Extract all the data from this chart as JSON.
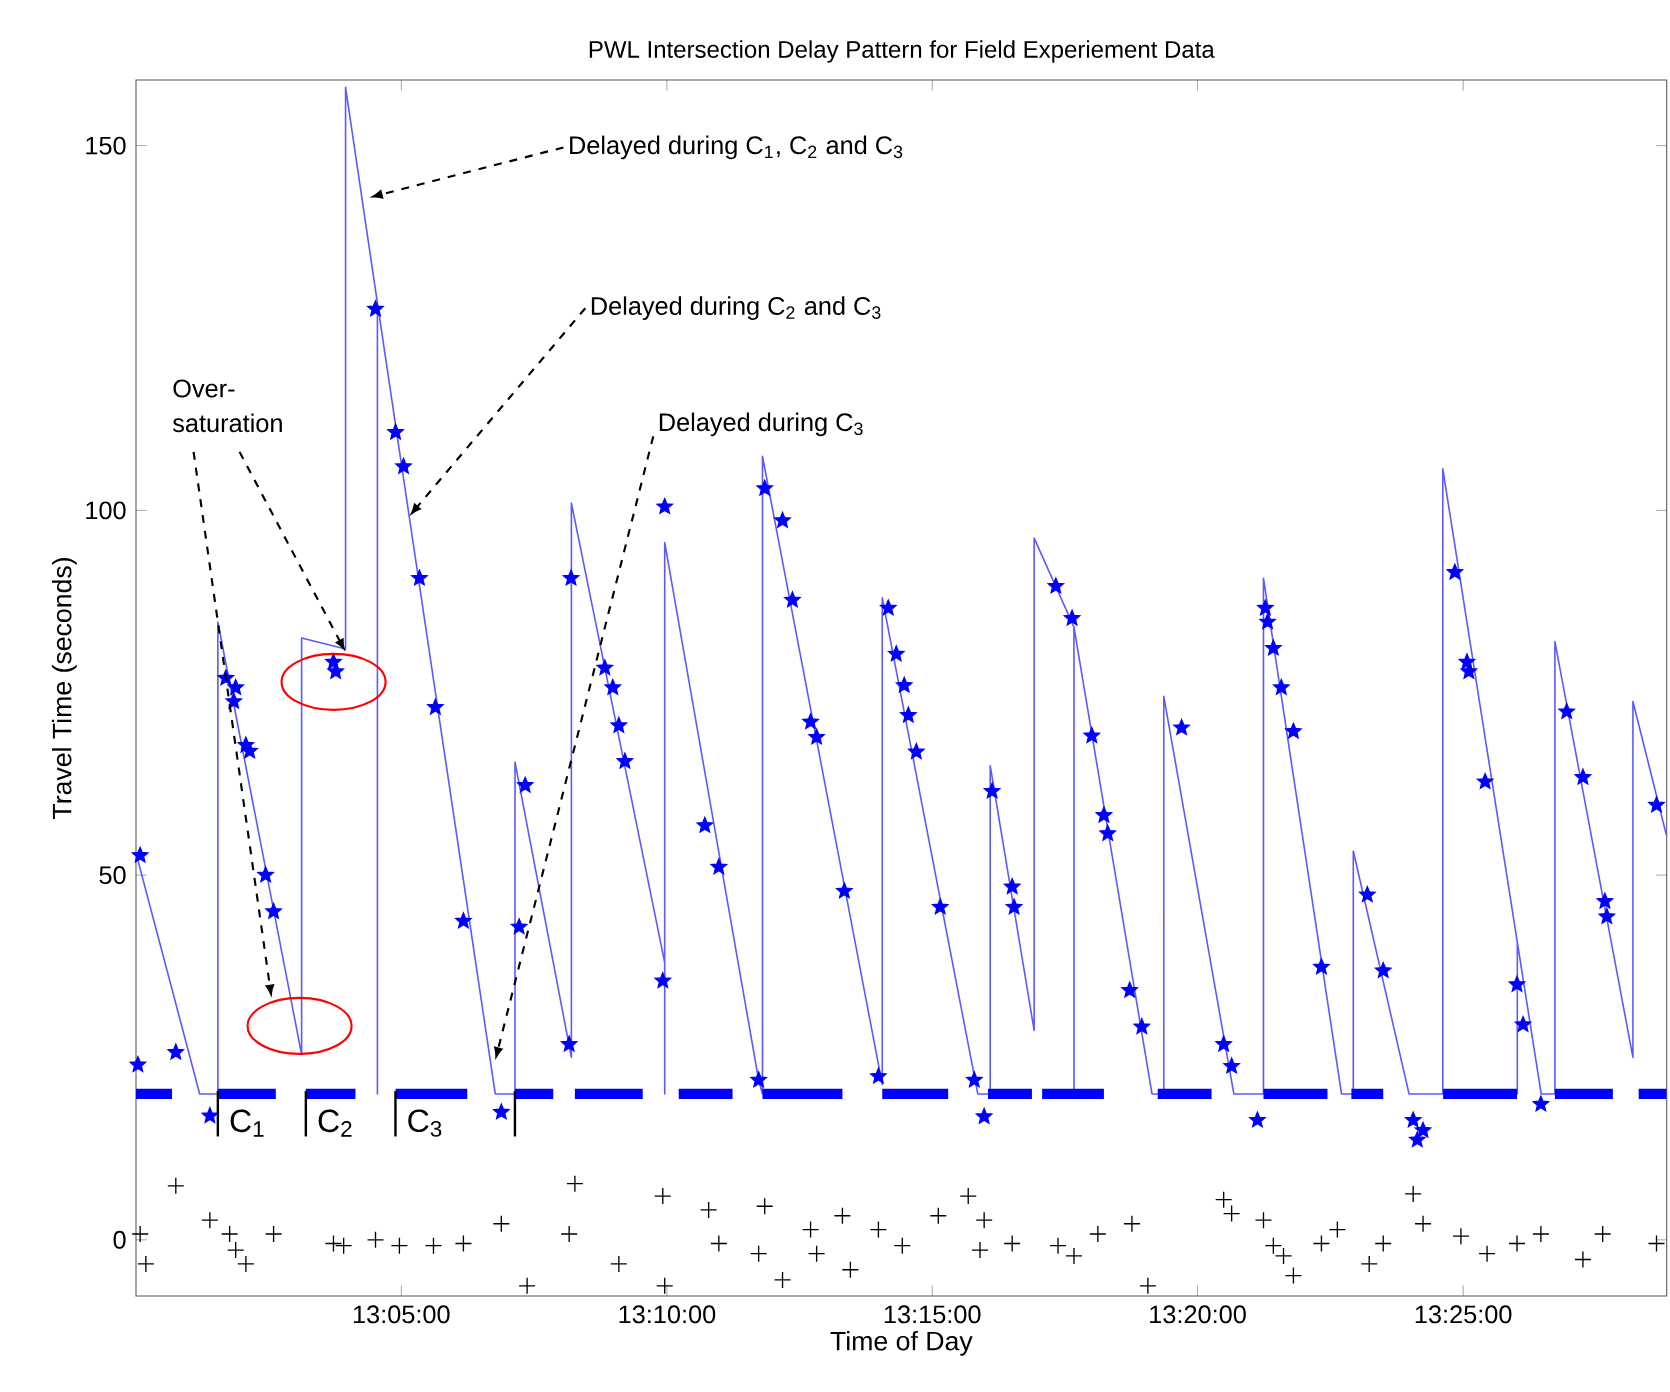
{
  "chart_data": {
    "type": "line",
    "title": "PWL Intersection Delay Pattern for Field Experiement Data",
    "xlabel": "Time of Day",
    "ylabel": "Travel Time (seconds)",
    "xlim": [
      13.0,
      13.4806
    ],
    "ylim": [
      -7.7,
      159
    ],
    "xticks": [
      {
        "value": 13.0833,
        "label": "13:05:00"
      },
      {
        "value": 13.1667,
        "label": "13:10:00"
      },
      {
        "value": 13.25,
        "label": "13:15:00"
      },
      {
        "value": 13.3333,
        "label": "13:20:00"
      },
      {
        "value": 13.4167,
        "label": "13:25:00"
      }
    ],
    "yticks": [
      0,
      50,
      100,
      150
    ],
    "grid": false,
    "series": [
      {
        "type": "line",
        "color": "#5a5aff",
        "marker": "none",
        "x": [
          13.0,
          13.02,
          13.0257,
          13.0257,
          13.052,
          13.052,
          13.0658,
          13.0658,
          13.0758,
          13.0758,
          13.0758,
          13.1128,
          13.119,
          13.119,
          13.1367,
          13.1367,
          13.166,
          13.166,
          13.166,
          13.1955,
          13.1967,
          13.1967,
          13.2343,
          13.2343,
          13.2643,
          13.2682,
          13.2682,
          13.282,
          13.282,
          13.2945,
          13.2945,
          13.2945,
          13.319,
          13.3227,
          13.3227,
          13.3447,
          13.354,
          13.354,
          13.3785,
          13.3822,
          13.3822,
          13.3997,
          13.4103,
          13.4103,
          13.4337,
          13.4337,
          13.4337,
          13.4412,
          13.4455,
          13.4455,
          13.47,
          13.47,
          13.4805
        ],
        "values": [
          53,
          20,
          20,
          84.7,
          25.4,
          82.5,
          81,
          158,
          128.4,
          20,
          128.4,
          20,
          20,
          65.5,
          25,
          101,
          38,
          20,
          95.6,
          21.9,
          20,
          107.4,
          21.3,
          88,
          20,
          20,
          65,
          28.7,
          96.2,
          84,
          20,
          84,
          20,
          20,
          74.5,
          20,
          20,
          90.7,
          20,
          20,
          53.3,
          20,
          20,
          105.7,
          40.8,
          20,
          40.8,
          20,
          20,
          82,
          25,
          73.8,
          55.5
        ]
      },
      {
        "type": "line",
        "color": "#0000ff",
        "marker": "none",
        "x": [
          13.0,
          13.0113,
          null,
          13.0257,
          13.0439,
          null,
          13.0533,
          13.0689,
          null,
          13.0815,
          13.104,
          null,
          13.119,
          13.131,
          null,
          13.1378,
          13.1591,
          null,
          13.1704,
          13.1873,
          null,
          13.1967,
          13.2218,
          null,
          13.2343,
          13.255,
          null,
          13.2675,
          13.2813,
          null,
          13.2845,
          13.3039,
          null,
          13.3208,
          13.3377,
          null,
          13.354,
          13.3741,
          null,
          13.3816,
          13.3916,
          null,
          13.4104,
          13.4336,
          null,
          13.4455,
          13.4637,
          null,
          13.4718,
          13.4806
        ],
        "values": [
          20,
          20,
          null,
          20,
          20,
          null,
          20,
          20,
          null,
          20,
          20,
          null,
          20,
          20,
          null,
          20,
          20,
          null,
          20,
          20,
          null,
          20,
          20,
          null,
          20,
          20,
          null,
          20,
          20,
          null,
          20,
          20,
          null,
          20,
          20,
          null,
          20,
          20,
          null,
          20,
          20,
          null,
          20,
          20,
          null,
          20,
          20,
          null,
          20,
          20
        ]
      },
      {
        "type": "scatter",
        "color": "#0000ff",
        "marker": "star",
        "x": [
          13.0013,
          13.0006,
          13.0125,
          13.0232,
          13.0282,
          13.0307,
          13.0313,
          13.0345,
          13.0357,
          13.0407,
          13.0432,
          13.0627,
          13.062,
          13.0752,
          13.0815,
          13.084,
          13.089,
          13.094,
          13.1028,
          13.1147,
          13.1222,
          13.1203,
          13.136,
          13.1366,
          13.1472,
          13.1497,
          13.1516,
          13.1535,
          13.166,
          13.1654,
          13.1786,
          13.183,
          13.1974,
          13.203,
          13.2061,
          13.2118,
          13.2137,
          13.2224,
          13.1955,
          13.2362,
          13.2387,
          13.2412,
          13.2425,
          13.245,
          13.2525,
          13.2331,
          13.2632,
          13.2663,
          13.2688,
          13.2751,
          13.2757,
          13.2888,
          13.2939,
          13.3001,
          13.3039,
          13.3051,
          13.312,
          13.3158,
          13.3283,
          13.3415,
          13.344,
          13.3521,
          13.3546,
          13.3553,
          13.3571,
          13.3596,
          13.3634,
          13.3722,
          13.3866,
          13.3916,
          13.401,
          13.4023,
          13.4041,
          13.4141,
          13.4179,
          13.4185,
          13.4236,
          13.4336,
          13.4355,
          13.4411,
          13.4492,
          13.4543,
          13.4612,
          13.4618,
          13.4774
        ],
        "values": [
          52.7,
          24,
          25.7,
          17,
          77,
          73.8,
          75.7,
          67.8,
          67,
          50,
          45,
          77.9,
          79.2,
          127.6,
          110.7,
          106,
          90.7,
          73,
          43.7,
          17.5,
          62.3,
          42.9,
          26.8,
          90.7,
          78.4,
          75.7,
          70.5,
          65.6,
          100.5,
          35.5,
          56.8,
          51.1,
          103,
          98.6,
          87.7,
          71,
          68.9,
          47.8,
          21.9,
          86.6,
          80.3,
          76,
          71.9,
          66.9,
          45.6,
          22.4,
          21.9,
          16.9,
          61.5,
          48.4,
          45.6,
          89.6,
          85.2,
          69.1,
          58.2,
          55.7,
          34.2,
          29.2,
          70.2,
          26.8,
          23.8,
          16.4,
          86.6,
          84.7,
          81.1,
          75.7,
          69.7,
          37.4,
          47.3,
          36.9,
          16.4,
          13.7,
          15,
          91.5,
          79.2,
          77.9,
          62.8,
          35,
          29.5,
          18.6,
          72.4,
          63.4,
          46.4,
          44.3,
          59.6
        ]
      },
      {
        "type": "scatter",
        "color": "#000000",
        "marker": "cross",
        "x": [
          13.0125,
          13.0013,
          13.0031,
          13.0232,
          13.0294,
          13.0313,
          13.0345,
          13.0432,
          13.062,
          13.0652,
          13.0752,
          13.0827,
          13.0934,
          13.1028,
          13.1147,
          13.1228,
          13.1378,
          13.136,
          13.1516,
          13.1654,
          13.166,
          13.1798,
          13.183,
          13.1955,
          13.1974,
          13.203,
          13.2118,
          13.2137,
          13.2218,
          13.2243,
          13.2331,
          13.2406,
          13.2519,
          13.2613,
          13.2663,
          13.265,
          13.2751,
          13.2895,
          13.2945,
          13.302,
          13.3127,
          13.3177,
          13.3415,
          13.344,
          13.354,
          13.3571,
          13.3603,
          13.3634,
          13.3722,
          13.3772,
          13.3872,
          13.3916,
          13.401,
          13.4041,
          13.416,
          13.4242,
          13.4336,
          13.4411,
          13.4543,
          13.4605,
          13.4774
        ],
        "values": [
          7.4,
          0.8,
          -3.3,
          2.7,
          0.8,
          -1.4,
          -3.3,
          0.8,
          -0.5,
          -0.8,
          0,
          -0.8,
          -0.8,
          -0.5,
          2.2,
          -6.3,
          7.7,
          0.8,
          -3.3,
          6,
          -6.3,
          4.1,
          -0.5,
          -1.9,
          4.6,
          -5.5,
          1.4,
          -1.9,
          3.3,
          -4.1,
          1.4,
          -0.8,
          3.3,
          6,
          2.7,
          -1.4,
          -0.5,
          -0.8,
          -2.2,
          0.8,
          2.2,
          -6.3,
          5.5,
          3.6,
          2.7,
          -0.8,
          -2.2,
          -4.9,
          -0.5,
          1.4,
          -3.3,
          -0.5,
          6.3,
          2.2,
          0.5,
          -1.9,
          -0.5,
          0.8,
          -2.7,
          0.8,
          -0.5
        ]
      }
    ],
    "annotations": [
      {
        "text": "C$_{1}$",
        "x": 13.0257,
        "y": 16
      },
      "C$_{2}$",
      "C$_{3}$",
      {
        "text": "Delayed during C$_{1}$, C$_{2}$ and C$_{3}$",
        "x": 13.0733,
        "y": 142.9
      },
      {
        "text": "Delayed during C$_{2}$ and C$_{3}$",
        "x": 13.0858,
        "y": 99.2
      },
      {
        "text": "Delayed during C$_{3}$",
        "x": 13.1128,
        "y": 24.6
      },
      {
        "text": "Over-saturation",
        "x": 13.0658,
        "y": 80.6
      }
    ]
  }
}
